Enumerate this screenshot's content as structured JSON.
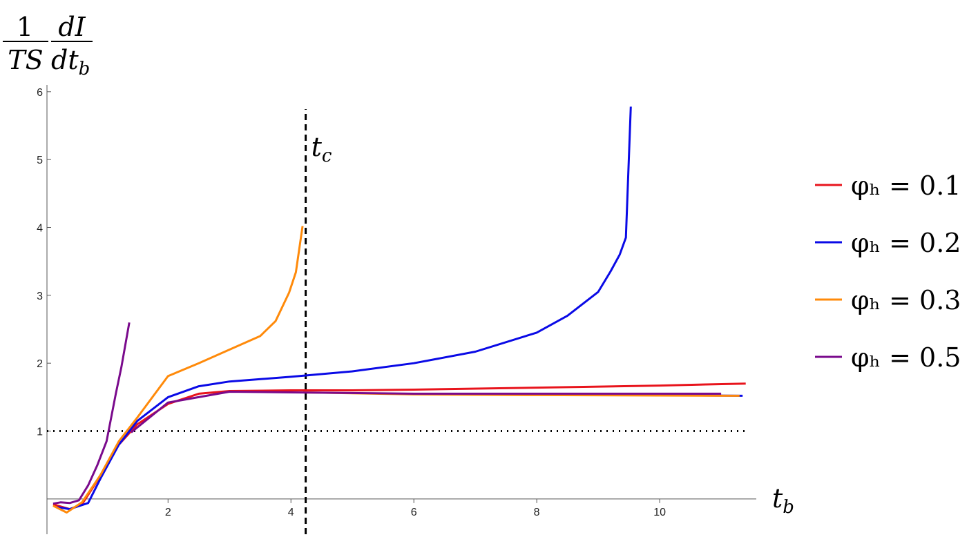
{
  "chart_data": {
    "type": "line",
    "ylabel": {
      "num1": "1",
      "den1": "TS",
      "num2": "dI",
      "den2": "dt",
      "den2_sub": "b"
    },
    "xlabel": {
      "text": "t",
      "sub": "b"
    },
    "xlim": [
      0.03,
      11.55
    ],
    "ylim": [
      -0.52,
      6.1
    ],
    "xticks": [
      2,
      4,
      6,
      8,
      10
    ],
    "yticks": [
      1,
      2,
      3,
      4,
      5,
      6
    ],
    "vline": {
      "x": 4.24,
      "label": "t",
      "label_sub": "c"
    },
    "hline": 1,
    "series": [
      {
        "name": "φₕ = 0.1",
        "color": "#e8141c",
        "x": [
          0.13,
          0.4,
          0.6,
          0.8,
          1.0,
          1.2,
          1.5,
          2,
          2.5,
          3,
          4,
          5,
          6,
          8,
          10,
          11.4
        ],
        "values": [
          -0.08,
          -0.15,
          -0.08,
          0.2,
          0.5,
          0.8,
          1.1,
          1.4,
          1.55,
          1.59,
          1.6,
          1.6,
          1.61,
          1.64,
          1.67,
          1.7
        ]
      },
      {
        "name": "φₕ = 0.2",
        "color": "#0a0ae6",
        "x": [
          0.2,
          0.4,
          0.7,
          0.9,
          1.2,
          1.5,
          2,
          2.5,
          3,
          4,
          5,
          6,
          7,
          8,
          8.5,
          9,
          9.2,
          9.35,
          9.45,
          9.53,
          null,
          9.6,
          11.35
        ],
        "values": [
          -0.12,
          -0.15,
          -0.06,
          0.3,
          0.8,
          1.15,
          1.5,
          1.66,
          1.73,
          1.8,
          1.88,
          2.0,
          2.17,
          2.45,
          2.7,
          3.05,
          3.35,
          3.6,
          3.85,
          5.78,
          null,
          1.53,
          1.52
        ]
      },
      {
        "name": "φₕ = 0.3",
        "color": "#ff8a0a",
        "x": [
          0.13,
          0.35,
          0.6,
          0.9,
          1.2,
          1.5,
          2,
          2.5,
          3,
          3.5,
          3.75,
          3.97,
          4.08,
          4.19,
          null,
          4.2,
          6,
          8,
          11.3
        ],
        "values": [
          -0.1,
          -0.2,
          -0.05,
          0.35,
          0.85,
          1.2,
          1.81,
          2.0,
          2.2,
          2.4,
          2.62,
          3.04,
          3.34,
          4.02,
          null,
          1.57,
          1.54,
          1.53,
          1.52
        ]
      },
      {
        "name": "φₕ = 0.5",
        "color": "#7a0a8c",
        "x": [
          0.13,
          0.25,
          0.4,
          0.55,
          0.7,
          0.85,
          1.0,
          1.15,
          1.24,
          1.37,
          null,
          1.4,
          2,
          3,
          4,
          6,
          11
        ],
        "values": [
          -0.07,
          -0.05,
          -0.06,
          -0.02,
          0.2,
          0.5,
          0.85,
          1.55,
          1.94,
          2.6,
          null,
          0.98,
          1.42,
          1.58,
          1.57,
          1.55,
          1.55
        ]
      }
    ]
  }
}
